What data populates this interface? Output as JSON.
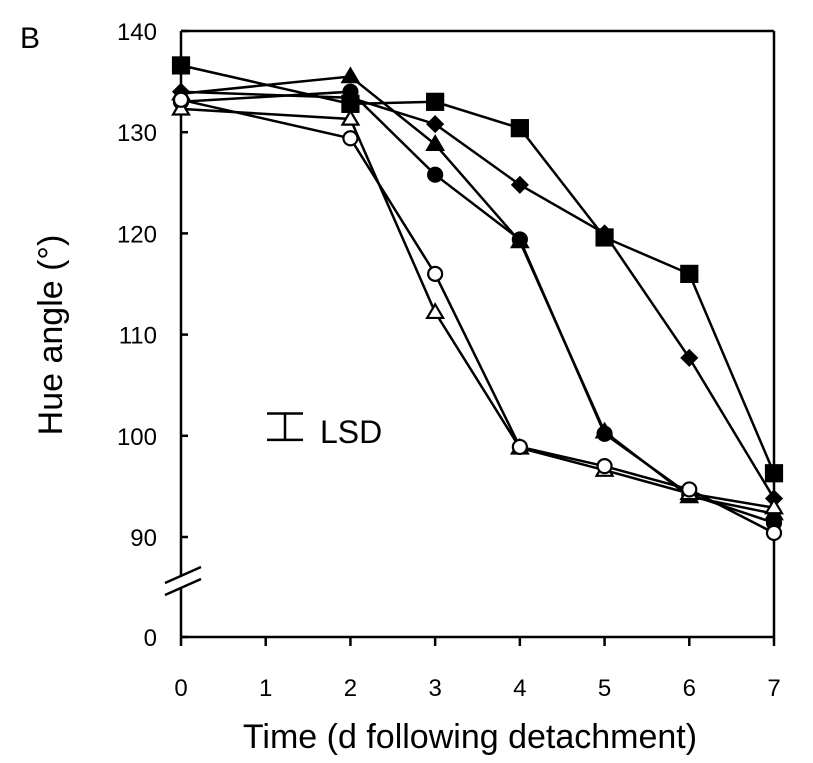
{
  "panel_label": "B",
  "chart_data": {
    "type": "line",
    "title": "",
    "xlabel": "Time (d following detachment)",
    "ylabel": "Hue angle (°)",
    "xlim": [
      0,
      7
    ],
    "ylim": [
      0,
      140
    ],
    "y_axis_break": [
      0,
      90
    ],
    "x_ticks": [
      0,
      1,
      2,
      3,
      4,
      5,
      6,
      7
    ],
    "y_ticks": [
      0,
      90,
      100,
      110,
      120,
      130,
      140
    ],
    "grid": false,
    "legend": "none",
    "annotation": {
      "text": "LSD",
      "bar_x": 1.2,
      "bar_y_range": [
        99.6,
        102.2
      ]
    },
    "series": [
      {
        "marker": "filled-square",
        "x": [
          0,
          2,
          3,
          4,
          5,
          6,
          7
        ],
        "y": [
          136.6,
          132.8,
          133.0,
          130.4,
          119.6,
          116.0,
          96.3
        ]
      },
      {
        "marker": "filled-diamond",
        "x": [
          0,
          2,
          3,
          4,
          5,
          6,
          7
        ],
        "y": [
          134.0,
          133.4,
          130.8,
          124.8,
          120.0,
          107.7,
          93.8
        ]
      },
      {
        "marker": "filled-triangle",
        "x": [
          0,
          2,
          3,
          4,
          5,
          6,
          7
        ],
        "y": [
          133.8,
          135.5,
          128.8,
          119.2,
          100.4,
          94.0,
          92.3
        ]
      },
      {
        "marker": "filled-circle",
        "x": [
          0,
          2,
          3,
          4,
          5,
          6,
          7
        ],
        "y": [
          133.0,
          134.0,
          125.8,
          119.4,
          100.2,
          94.2,
          91.4
        ]
      },
      {
        "marker": "open-triangle",
        "x": [
          0,
          2,
          3,
          4,
          5,
          6,
          7
        ],
        "y": [
          132.3,
          131.3,
          112.2,
          98.8,
          96.6,
          94.3,
          92.9
        ]
      },
      {
        "marker": "open-circle",
        "x": [
          0,
          2,
          3,
          4,
          5,
          6,
          7
        ],
        "y": [
          133.2,
          129.4,
          116.0,
          98.9,
          97.0,
          94.7,
          90.4
        ]
      }
    ]
  }
}
